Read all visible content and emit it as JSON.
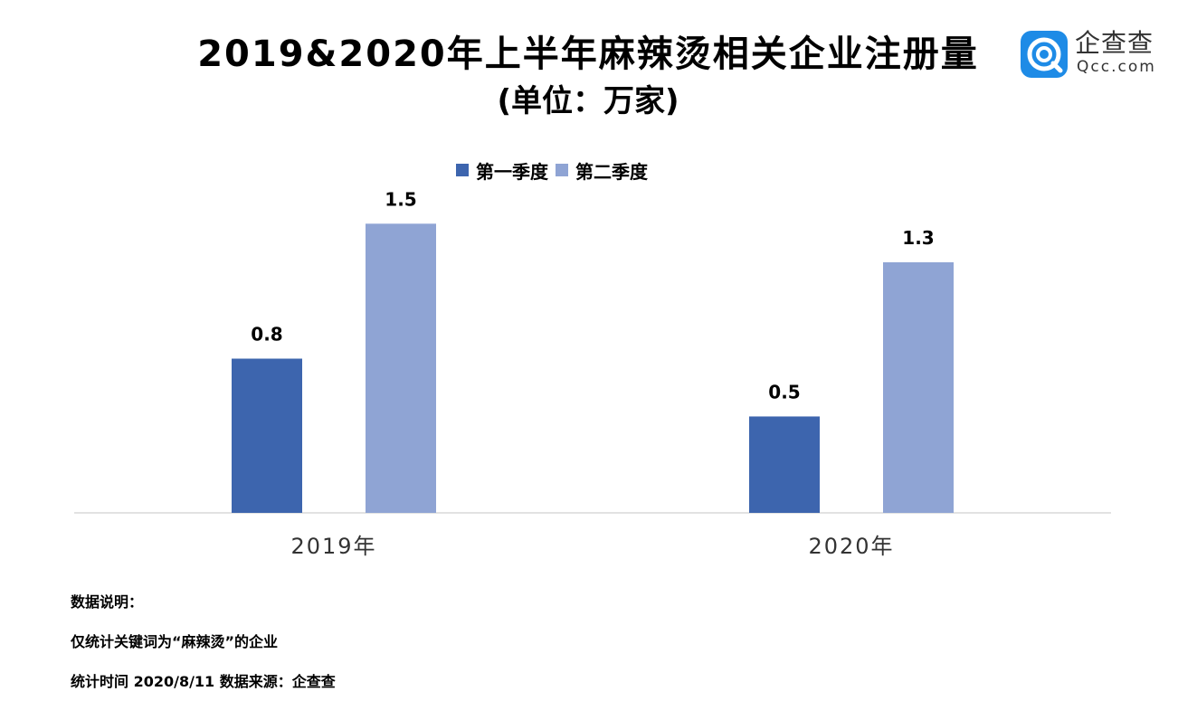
{
  "title": "2019&2020年上半年麻辣烫相关企业注册量",
  "subtitle": "(单位：万家)",
  "logo": {
    "name": "企查查",
    "domain": "Qcc.com",
    "icon": "qcc-logo-icon",
    "color": "#1e8be6"
  },
  "chart_data": {
    "type": "bar",
    "categories": [
      "2019年",
      "2020年"
    ],
    "series": [
      {
        "name": "第一季度",
        "values": [
          0.8,
          0.5
        ],
        "color": "#3d65ae"
      },
      {
        "name": "第二季度",
        "values": [
          1.5,
          1.3
        ],
        "color": "#8fa4d4"
      }
    ],
    "value_labels": [
      [
        "0.8",
        "0.5"
      ],
      [
        "1.5",
        "1.3"
      ]
    ],
    "ylim": [
      0,
      1.6
    ],
    "legend_position": "top",
    "grid": false,
    "xlabel": "",
    "ylabel": ""
  },
  "notes": {
    "heading": "数据说明：",
    "line1": "仅统计关键词为“麻辣烫”的企业",
    "line2": "统计时间 2020/8/11   数据来源：企查查"
  }
}
